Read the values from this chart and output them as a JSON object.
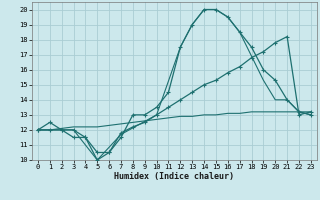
{
  "title": "",
  "xlabel": "Humidex (Indice chaleur)",
  "xlim": [
    -0.5,
    23.5
  ],
  "ylim": [
    10,
    20.5
  ],
  "yticks": [
    10,
    11,
    12,
    13,
    14,
    15,
    16,
    17,
    18,
    19,
    20
  ],
  "xticks": [
    0,
    1,
    2,
    3,
    4,
    5,
    6,
    7,
    8,
    9,
    10,
    11,
    12,
    13,
    14,
    15,
    16,
    17,
    18,
    19,
    20,
    21,
    22,
    23
  ],
  "bg_color": "#cce8ec",
  "grid_color": "#aacdd4",
  "line_color": "#1e7070",
  "line1_x": [
    0,
    1,
    2,
    3,
    4,
    5,
    6,
    7,
    8,
    9,
    10,
    11,
    12,
    13,
    14,
    15,
    16,
    17,
    18,
    19,
    20,
    21,
    22,
    23
  ],
  "line1_y": [
    12.0,
    12.5,
    12.0,
    11.5,
    11.5,
    10.0,
    10.5,
    11.5,
    13.0,
    13.0,
    13.5,
    14.5,
    17.5,
    19.0,
    20.0,
    20.0,
    19.5,
    18.5,
    17.5,
    16.0,
    15.3,
    14.0,
    13.2,
    13.0
  ],
  "line2_x": [
    0,
    1,
    2,
    3,
    4,
    5,
    6,
    7,
    8,
    9,
    10,
    11,
    12,
    13,
    14,
    15,
    16,
    17,
    18,
    19,
    20,
    21,
    22,
    23
  ],
  "line2_y": [
    12.0,
    12.0,
    12.0,
    12.0,
    11.5,
    10.5,
    10.5,
    11.8,
    12.2,
    12.5,
    13.0,
    13.5,
    14.0,
    14.5,
    15.0,
    15.3,
    15.8,
    16.2,
    16.8,
    17.2,
    17.8,
    18.2,
    13.0,
    13.2
  ],
  "line3_x": [
    0,
    1,
    2,
    3,
    5,
    7,
    10,
    12,
    13,
    14,
    15,
    16,
    17,
    19,
    20,
    21,
    22,
    23
  ],
  "line3_y": [
    12.0,
    12.0,
    12.0,
    12.0,
    10.0,
    11.7,
    13.0,
    17.5,
    19.0,
    20.0,
    20.0,
    19.5,
    18.5,
    15.3,
    14.0,
    14.0,
    13.2,
    13.0
  ],
  "line4_x": [
    0,
    1,
    2,
    3,
    4,
    5,
    6,
    7,
    8,
    9,
    10,
    11,
    12,
    13,
    14,
    15,
    16,
    17,
    18,
    19,
    20,
    21,
    22,
    23
  ],
  "line4_y": [
    12.0,
    12.0,
    12.1,
    12.2,
    12.2,
    12.2,
    12.3,
    12.4,
    12.5,
    12.6,
    12.7,
    12.8,
    12.9,
    12.9,
    13.0,
    13.0,
    13.1,
    13.1,
    13.2,
    13.2,
    13.2,
    13.2,
    13.2,
    13.2
  ]
}
